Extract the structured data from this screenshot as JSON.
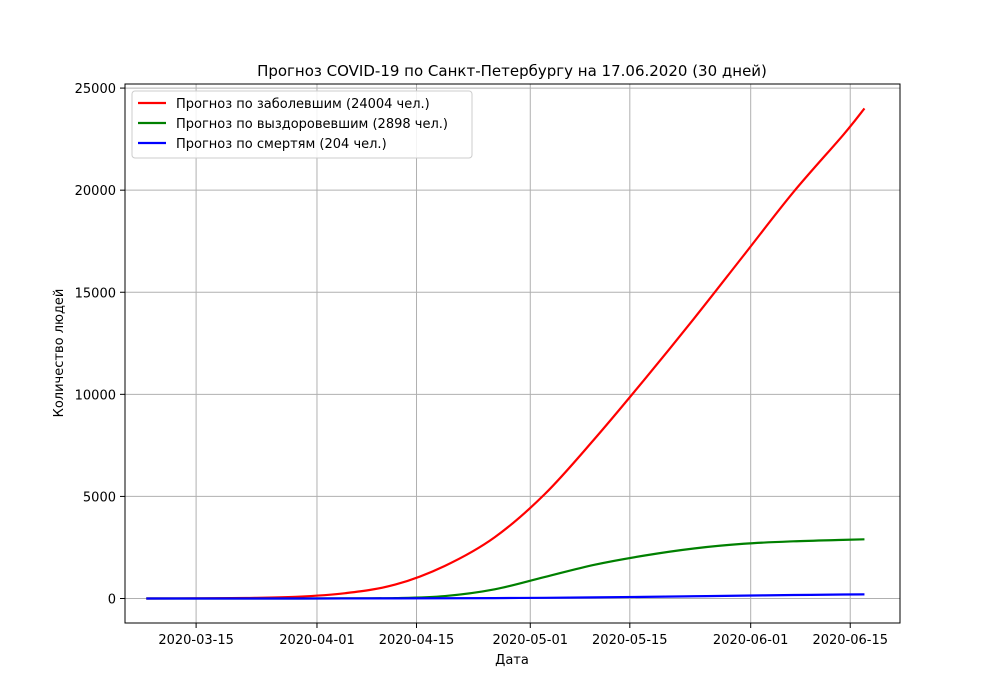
{
  "chart_data": {
    "type": "line",
    "title": "Прогноз COVID-19 по Санкт-Петербургу на 17.06.2020 (30 дней)",
    "xlabel": "Дата",
    "ylabel": "Количество людей",
    "xlim": [
      "2020-03-05",
      "2020-06-22"
    ],
    "ylim": [
      -1200,
      25200
    ],
    "grid": true,
    "legend_position": "top-left",
    "x_ticks": [
      "2020-03-15",
      "2020-04-01",
      "2020-04-15",
      "2020-05-01",
      "2020-05-15",
      "2020-06-01",
      "2020-06-15"
    ],
    "y_ticks": [
      0,
      5000,
      10000,
      15000,
      20000,
      25000
    ],
    "x": [
      "2020-03-08",
      "2020-03-15",
      "2020-03-22",
      "2020-03-29",
      "2020-04-05",
      "2020-04-12",
      "2020-04-19",
      "2020-04-26",
      "2020-05-03",
      "2020-05-10",
      "2020-05-17",
      "2020-05-24",
      "2020-05-31",
      "2020-06-07",
      "2020-06-14",
      "2020-06-17"
    ],
    "series": [
      {
        "name": "Прогноз по заболевшим (24004 чел.)",
        "color": "#ff0000",
        "values": [
          0,
          5,
          25,
          80,
          260,
          680,
          1600,
          3000,
          5100,
          7800,
          10700,
          13700,
          16800,
          19900,
          22700,
          24004
        ]
      },
      {
        "name": "Прогноз по выздоровевшим (2898 чел.)",
        "color": "#008000",
        "values": [
          0,
          0,
          0,
          0,
          5,
          20,
          120,
          450,
          1050,
          1650,
          2100,
          2450,
          2680,
          2800,
          2870,
          2898
        ]
      },
      {
        "name": "Прогноз по смертям (204 чел.)",
        "color": "#0000ff",
        "values": [
          0,
          0,
          0,
          0,
          2,
          6,
          12,
          20,
          35,
          55,
          80,
          110,
          140,
          170,
          195,
          204
        ]
      }
    ]
  }
}
